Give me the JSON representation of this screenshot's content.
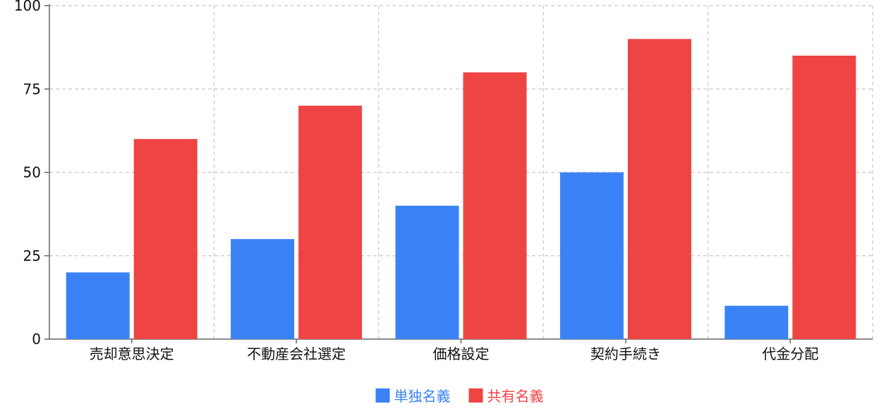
{
  "chart_data": {
    "type": "bar",
    "categories": [
      "売却意思決定",
      "不動産会社選定",
      "価格設定",
      "契約手続き",
      "代金分配"
    ],
    "series": [
      {
        "name": "単独名義",
        "values": [
          20,
          30,
          40,
          50,
          10
        ],
        "color": "#3b82f6"
      },
      {
        "name": "共有名義",
        "values": [
          60,
          70,
          80,
          90,
          85
        ],
        "color": "#ef4444"
      }
    ],
    "yticks": [
      0,
      25,
      50,
      75,
      100
    ],
    "ylim": [
      0,
      100
    ],
    "grid": true,
    "legend_position": "bottom-center",
    "title": "",
    "xlabel": "",
    "ylabel": ""
  }
}
